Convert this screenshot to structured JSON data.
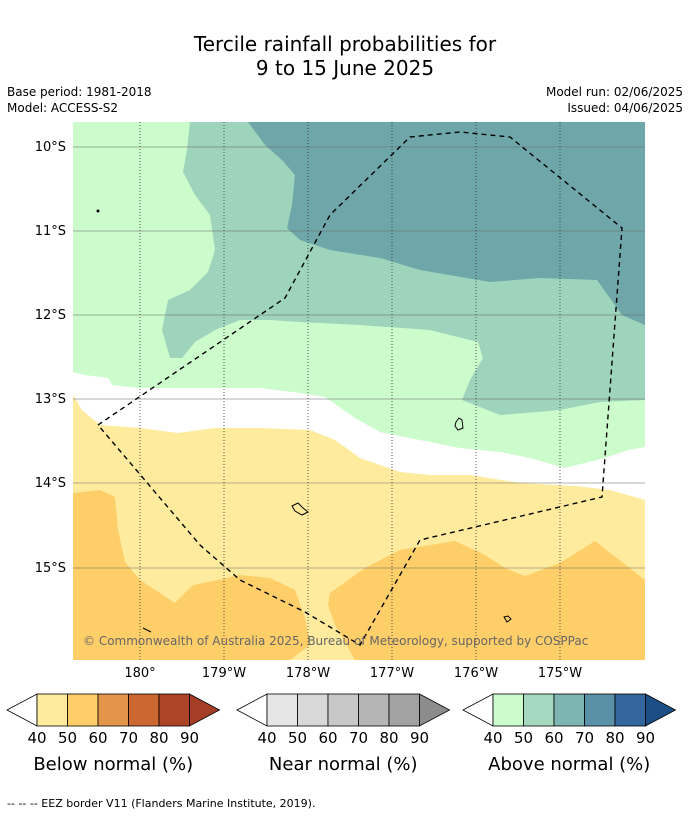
{
  "header": {
    "title_line1": "Tercile rainfall probabilities for",
    "title_line2": "9 to 15 June 2025",
    "base_period": "Base period: 1981-2018",
    "model": "Model: ACCESS-S2",
    "model_run": "Model run: 02/06/2025",
    "issued": "Issued: 04/06/2025"
  },
  "map": {
    "lat_labels": [
      "10°S",
      "11°S",
      "12°S",
      "13°S",
      "14°S",
      "15°S"
    ],
    "lon_labels": [
      "180°",
      "179°W",
      "178°W",
      "177°W",
      "176°W",
      "175°W"
    ],
    "copyright": "© Commonwealth of Australia 2025, Bureau of Meteorology, supported by COSPPac",
    "colors": {
      "above_50": "#ccfbcc",
      "above_60": "#9dd4bb",
      "above_70": "#6ea6a9",
      "below_50": "#feeb9e",
      "below_60": "#fece68",
      "near_none": "#ffffff"
    }
  },
  "colorbars": [
    {
      "title": "Below normal (%)",
      "ticks": [
        "40",
        "50",
        "60",
        "70",
        "80",
        "90"
      ],
      "colors": [
        "#ffffff",
        "#feeb9e",
        "#fece68",
        "#e3964a",
        "#cd6731",
        "#ae4426",
        "#a43e26"
      ]
    },
    {
      "title": "Near normal (%)",
      "ticks": [
        "40",
        "50",
        "60",
        "70",
        "80",
        "90"
      ],
      "colors": [
        "#ffffff",
        "#e6e6e6",
        "#d8d8d8",
        "#c8c8c8",
        "#b5b5b5",
        "#a2a2a2",
        "#8c8c8c"
      ]
    },
    {
      "title": "Above normal (%)",
      "ticks": [
        "40",
        "50",
        "60",
        "70",
        "80",
        "90"
      ],
      "colors": [
        "#ffffff",
        "#ccfbcc",
        "#a4d9bf",
        "#7eb4b1",
        "#5b91a6",
        "#33669d",
        "#1a4e85"
      ]
    }
  ],
  "footnote": "--  --  -- EEZ border V11 (Flanders Marine Institute, 2019)."
}
